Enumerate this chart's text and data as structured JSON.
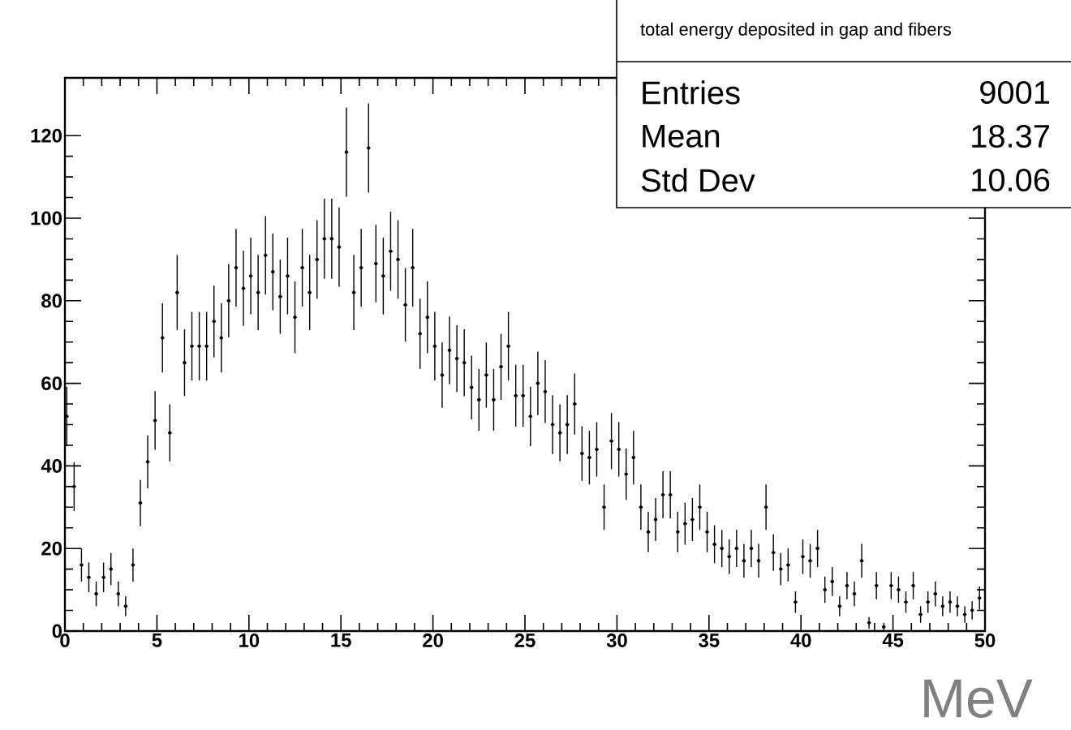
{
  "chart_data": {
    "type": "scatter",
    "title": "total energy deposited in gap and fibers",
    "xlabel": "MeV",
    "x": [
      0.1,
      0.5,
      0.9,
      1.3,
      1.7,
      2.1,
      2.5,
      2.9,
      3.3,
      3.7,
      4.1,
      4.5,
      4.9,
      5.3,
      5.7,
      6.1,
      6.5,
      6.9,
      7.3,
      7.7,
      8.1,
      8.5,
      8.9,
      9.3,
      9.7,
      10.1,
      10.5,
      10.9,
      11.3,
      11.7,
      12.1,
      12.5,
      12.9,
      13.3,
      13.7,
      14.1,
      14.5,
      14.9,
      15.3,
      15.7,
      16.1,
      16.5,
      16.9,
      17.3,
      17.7,
      18.1,
      18.5,
      18.9,
      19.3,
      19.7,
      20.1,
      20.5,
      20.9,
      21.3,
      21.7,
      22.1,
      22.5,
      22.9,
      23.3,
      23.7,
      24.1,
      24.5,
      24.9,
      25.3,
      25.7,
      26.1,
      26.5,
      26.9,
      27.3,
      27.7,
      28.1,
      28.5,
      28.9,
      29.3,
      29.7,
      30.1,
      30.5,
      30.9,
      31.3,
      31.7,
      32.1,
      32.5,
      32.9,
      33.3,
      33.7,
      34.1,
      34.5,
      34.9,
      35.3,
      35.7,
      36.1,
      36.5,
      36.9,
      37.3,
      37.7,
      38.1,
      38.5,
      38.9,
      39.3,
      39.7,
      40.1,
      40.5,
      40.9,
      41.3,
      41.7,
      42.1,
      42.5,
      42.9,
      43.3,
      43.7,
      44.1,
      44.5,
      44.9,
      45.3,
      45.7,
      46.1,
      46.5,
      46.9,
      47.3,
      47.7,
      48.1,
      48.5,
      48.9,
      49.3,
      49.7
    ],
    "values": [
      52,
      35,
      16,
      13,
      9,
      13,
      15,
      9,
      6,
      16,
      31,
      41,
      51,
      71,
      48,
      82,
      65,
      69,
      69,
      69,
      75,
      71,
      80,
      88,
      83,
      86,
      82,
      91,
      87,
      81,
      86,
      76,
      88,
      82,
      90,
      95,
      95,
      93,
      116,
      82,
      88,
      117,
      89,
      86,
      92,
      90,
      79,
      88,
      72,
      76,
      69,
      62,
      68,
      66,
      65,
      59,
      56,
      62,
      56,
      64,
      69,
      57,
      57,
      52,
      60,
      58,
      50,
      48,
      50,
      55,
      43,
      42,
      44,
      30,
      46,
      44,
      38,
      42,
      30,
      24,
      27,
      33,
      33,
      24,
      26,
      27,
      30,
      24,
      21,
      20,
      18,
      20,
      17,
      20,
      17,
      30,
      19,
      15,
      16,
      7,
      18,
      17,
      20,
      10,
      12,
      6,
      11,
      9,
      17,
      2,
      11,
      1,
      11,
      10,
      7,
      11,
      4,
      7,
      9,
      6,
      7,
      6,
      4,
      5,
      8
    ],
    "errors": [
      7.2,
      5.9,
      4,
      3.6,
      3,
      3.6,
      3.9,
      3,
      2.4,
      4,
      5.6,
      6.4,
      7.1,
      8.4,
      6.9,
      9.1,
      8.1,
      8.3,
      8.3,
      8.3,
      8.7,
      8.4,
      8.9,
      9.4,
      9.1,
      9.3,
      9.1,
      9.5,
      9.3,
      9,
      9.3,
      8.7,
      9.4,
      9.1,
      9.5,
      9.7,
      9.7,
      9.6,
      10.8,
      9.1,
      9.4,
      10.8,
      9.4,
      9.3,
      9.6,
      9.5,
      8.9,
      9.4,
      8.5,
      8.7,
      8.3,
      7.9,
      8.2,
      8.1,
      8.1,
      7.7,
      7.5,
      7.9,
      7.5,
      8,
      8.3,
      7.5,
      7.5,
      7.2,
      7.7,
      7.6,
      7.1,
      6.9,
      7.1,
      7.4,
      6.6,
      6.5,
      6.6,
      5.5,
      6.8,
      6.6,
      6.2,
      6.5,
      5.5,
      4.9,
      5.2,
      5.7,
      5.7,
      4.9,
      5.1,
      5.2,
      5.5,
      4.9,
      4.6,
      4.5,
      4.2,
      4.5,
      4.1,
      4.5,
      4.1,
      5.5,
      4.4,
      3.9,
      4,
      2.6,
      4.2,
      4.1,
      4.5,
      3.2,
      3.5,
      2.4,
      3.3,
      3,
      4.1,
      1.4,
      3.3,
      1,
      3.3,
      3.2,
      2.6,
      3.3,
      2,
      2.6,
      3,
      2.4,
      2.6,
      2.4,
      2,
      2.2,
      2.8
    ],
    "xerrors": [
      0.1,
      0.1,
      0.1,
      0.1,
      0.1,
      0.1,
      0.1,
      0.1,
      0.1,
      0.1,
      0.1,
      0.1,
      0.1,
      0.1,
      0.1,
      0.1,
      0.1,
      0.1,
      0.1,
      0.1,
      0.1,
      0.1,
      0.1,
      0.1,
      0.1,
      0.1,
      0.1,
      0.1,
      0.1,
      0.1,
      0.1,
      0.1,
      0.1,
      0.1,
      0.1,
      0.1,
      0.1,
      0.1,
      0.1,
      0.1,
      0.1,
      0.1,
      0.1,
      0.1,
      0.1,
      0.1,
      0.1,
      0.1,
      0.1,
      0.1,
      0.1,
      0.1,
      0.1,
      0.1,
      0.1,
      0.1,
      0.1,
      0.1,
      0.1,
      0.1,
      0.1,
      0.1,
      0.1,
      0.1,
      0.1,
      0.1,
      0.1,
      0.1,
      0.1,
      0.1,
      0.1,
      0.1,
      0.1,
      0.1,
      0.1,
      0.1,
      0.1,
      0.1,
      0.1,
      0.1,
      0.1,
      0.1,
      0.1,
      0.1,
      0.1,
      0.1,
      0.1,
      0.1,
      0.1,
      0.1,
      0.1,
      0.1,
      0.1,
      0.1,
      0.1,
      0.1,
      0.1,
      0.1,
      0.1,
      0.1,
      0.1,
      0.1,
      0.1,
      0.1,
      0.1,
      0.1,
      0.1,
      0.1,
      0.1,
      0.1,
      0.1,
      0.1,
      0.1,
      0.1,
      0.1,
      0.1,
      0.1,
      0.1,
      0.1,
      0.1,
      0.1,
      0.1,
      0.1,
      0.1,
      0.1
    ],
    "color": "#000000",
    "marker": "circle",
    "xlim": [
      0,
      50
    ],
    "ylim": [
      0,
      134
    ],
    "xticks": [
      0,
      5,
      10,
      15,
      20,
      25,
      30,
      35,
      40,
      45,
      50
    ],
    "yticks": [
      0,
      20,
      40,
      60,
      80,
      100,
      120
    ],
    "annotations": [
      "Entries",
      "9001",
      "Mean",
      "18.37",
      "Std Dev",
      "10.06"
    ]
  }
}
